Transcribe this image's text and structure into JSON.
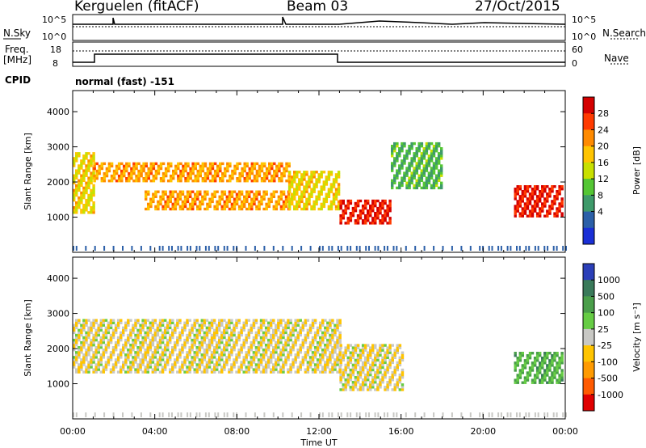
{
  "header": {
    "station": "Kerguelen (fitACF)",
    "beam": "Beam 03",
    "date": "27/Oct/2015"
  },
  "param_labels": {
    "nsky": "N.Sky",
    "nsearch": "N.Search",
    "freq_line1": "Freq.",
    "freq_line2": "[MHz]",
    "nave": "Nave",
    "cpid": "CPID",
    "cpid_value": "normal (fast) -151",
    "noise_ticks": [
      "10^5",
      "10^0"
    ],
    "freq_ticks": [
      "18",
      "8"
    ],
    "nave_ticks": [
      "60",
      "0"
    ]
  },
  "x_axis": {
    "label": "Time UT",
    "ticks": [
      "00:00",
      "04:00",
      "08:00",
      "12:00",
      "16:00",
      "20:00",
      "00:00"
    ]
  },
  "chart_data": [
    {
      "type": "heatmap",
      "title": "",
      "xlabel": "Time UT",
      "ylabel": "Slant Range [km]",
      "x_range_hours": [
        0,
        24
      ],
      "ylim": [
        0,
        4600
      ],
      "yticks": [
        1000,
        2000,
        3000,
        4000
      ],
      "colorbar": {
        "label": "Power [dB]",
        "ticks": [
          "28",
          "24",
          "20",
          "16",
          "12",
          "8",
          "4"
        ],
        "colors": [
          "#d40000",
          "#ff3a00",
          "#ff8a00",
          "#ffc400",
          "#c8e000",
          "#54c634",
          "#3e9a6a",
          "#2b5fa8",
          "#1a2fd6"
        ]
      },
      "bands": [
        {
          "t0": 0.0,
          "t1": 1.0,
          "r0": 1100,
          "r1": 2800,
          "level": 16
        },
        {
          "t0": 1.0,
          "t1": 10.5,
          "r0": 2000,
          "r1": 2500,
          "level": 20
        },
        {
          "t0": 3.5,
          "t1": 10.5,
          "r0": 1200,
          "r1": 1700,
          "level": 20
        },
        {
          "t0": 10.5,
          "t1": 12.9,
          "r0": 1200,
          "r1": 2300,
          "level": 16
        },
        {
          "t0": 13.0,
          "t1": 15.5,
          "r0": 800,
          "r1": 1500,
          "level": 28
        },
        {
          "t0": 15.5,
          "t1": 18.0,
          "r0": 1800,
          "r1": 3100,
          "level": 8
        },
        {
          "t0": 21.5,
          "t1": 23.8,
          "r0": 1000,
          "r1": 1900,
          "level": 28
        }
      ]
    },
    {
      "type": "heatmap",
      "title": "",
      "xlabel": "Time UT",
      "ylabel": "Slant Range [km]",
      "x_range_hours": [
        0,
        24
      ],
      "ylim": [
        0,
        4600
      ],
      "yticks": [
        1000,
        2000,
        3000,
        4000
      ],
      "colorbar": {
        "label": "Velocity [m s⁻¹]",
        "ticks": [
          "1000",
          "500",
          "100",
          "25",
          "-25",
          "-100",
          "-500",
          "-1000"
        ],
        "colors": [
          "#2b3fb8",
          "#3a7a5a",
          "#4a9e4a",
          "#66cc44",
          "#c8c8c4",
          "#ffc400",
          "#ff9a00",
          "#ff5a00",
          "#e00000"
        ]
      },
      "bands": [
        {
          "t0": 0.0,
          "t1": 13.0,
          "r0": 1300,
          "r1": 2800,
          "level": 0
        },
        {
          "t0": 13.0,
          "t1": 16.0,
          "r0": 800,
          "r1": 2100,
          "level": 0
        },
        {
          "t0": 21.5,
          "t1": 23.8,
          "r0": 1000,
          "r1": 1900,
          "level": 100
        }
      ]
    }
  ]
}
